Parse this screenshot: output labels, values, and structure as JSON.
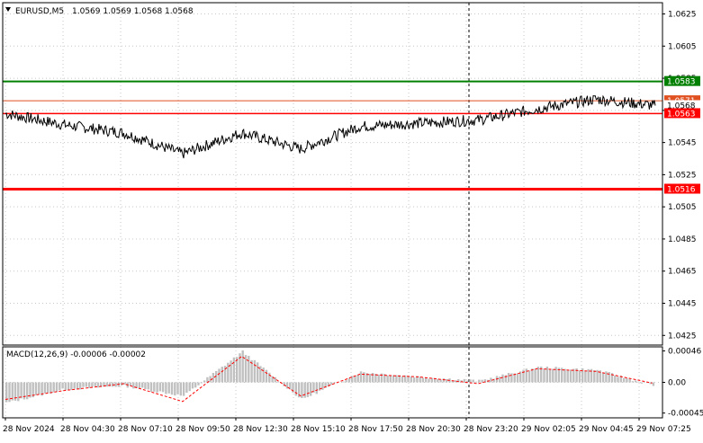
{
  "header": {
    "symbol": "EURUSD,M5",
    "ohlc": "1.0569 1.0569 1.0568 1.0568",
    "menu_icon": "triangle-down-icon"
  },
  "colors": {
    "background": "#ffffff",
    "grid": "#c8c8c8",
    "price_line": "#000000",
    "resistance": "#008000",
    "support": "#ff0000",
    "current_price": "#e05020",
    "macd_histogram": "#c0c0c0",
    "macd_signal": "#ff0000"
  },
  "chart_data": [
    {
      "type": "line",
      "name": "main-price-panel",
      "y_ticks": [
        "1.0625",
        "1.0605",
        "1.0585",
        "1.0565",
        "1.0545",
        "1.0525",
        "1.0505",
        "1.0485",
        "1.0465",
        "1.0445",
        "1.0425"
      ],
      "ylim": [
        1.0419,
        1.0632
      ],
      "grid": true,
      "x_ticks": [
        "28 Nov 2024",
        "28 Nov 04:30",
        "28 Nov 07:10",
        "28 Nov 09:50",
        "28 Nov 12:30",
        "28 Nov 15:10",
        "28 Nov 17:50",
        "28 Nov 20:30",
        "28 Nov 23:20",
        "29 Nov 02:05",
        "29 Nov 04:45",
        "29 Nov 07:25"
      ],
      "x": [
        "28 Nov 2024",
        "28 Nov 04:30",
        "28 Nov 07:10",
        "28 Nov 09:50",
        "28 Nov 12:30",
        "28 Nov 15:10",
        "28 Nov 17:50",
        "28 Nov 20:30",
        "28 Nov 23:20",
        "29 Nov 02:05",
        "29 Nov 04:45",
        "29 Nov 07:25"
      ],
      "values": [
        1.0563,
        1.0556,
        1.0551,
        1.0538,
        1.0551,
        1.0541,
        1.0555,
        1.0557,
        1.0559,
        1.0566,
        1.0572,
        1.0568
      ],
      "horizontal_levels": [
        {
          "label": "1.0583",
          "value": 1.0583,
          "color": "#008000"
        },
        {
          "label": "1.0571",
          "value": 1.0571,
          "color": "#e05020"
        },
        {
          "label": "1.0568",
          "value": 1.0568,
          "color": "#000000"
        },
        {
          "label": "1.0563",
          "value": 1.0563,
          "color": "#ff0000"
        },
        {
          "label": "1.0516",
          "value": 1.0516,
          "color": "#ff0000"
        }
      ],
      "vertical_marker": "28 Nov 23:20"
    },
    {
      "type": "bar",
      "name": "macd-panel",
      "title": "MACD(12,26,9) -0.00006 -0.00002",
      "y_ticks": [
        "0.00046",
        "0.00",
        "-0.00045"
      ],
      "ylim": [
        -0.00052,
        0.00052
      ],
      "x": [
        "28 Nov 2024",
        "28 Nov 04:30",
        "28 Nov 07:10",
        "28 Nov 09:50",
        "28 Nov 12:30",
        "28 Nov 15:10",
        "28 Nov 17:50",
        "28 Nov 20:30",
        "28 Nov 23:20",
        "29 Nov 02:05",
        "29 Nov 04:45",
        "29 Nov 07:25"
      ],
      "histogram": [
        -0.0003,
        -0.0001,
        -5e-05,
        -0.0002,
        0.00045,
        -0.00025,
        0.00015,
        8e-05,
        2e-05,
        0.00022,
        0.00018,
        -6e-05
      ],
      "signal": [
        -0.00025,
        -0.00012,
        -2e-05,
        -0.00028,
        0.00038,
        -0.0002,
        0.00012,
        8e-05,
        -2e-05,
        0.0002,
        0.00016,
        -2e-05
      ]
    }
  ]
}
